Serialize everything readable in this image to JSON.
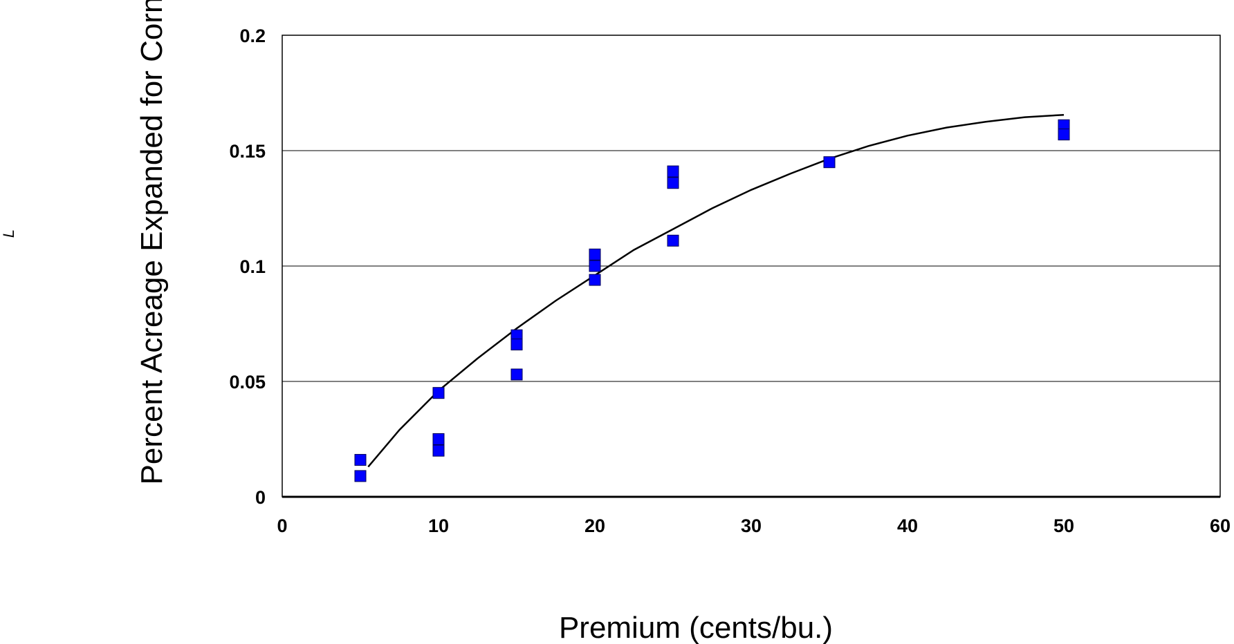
{
  "chart_data": {
    "type": "scatter",
    "title": "",
    "xlabel": "Premium (cents/bu.)",
    "ylabel": "Percent Acreage Expanded for Corn",
    "stray_text": "L",
    "xlim": [
      0,
      60
    ],
    "ylim": [
      0,
      0.2
    ],
    "x_ticks": [
      0,
      10,
      20,
      30,
      40,
      50,
      60
    ],
    "y_ticks": [
      0,
      0.05,
      0.1,
      0.15,
      0.2
    ],
    "x_tick_labels": [
      "0",
      "10",
      "20",
      "30",
      "40",
      "50",
      "60"
    ],
    "y_tick_labels": [
      "0",
      "0.05",
      "0.1",
      "0.15",
      "0.2"
    ],
    "grid": {
      "horizontal": true,
      "vertical": false
    },
    "legend": "none",
    "marker_color": "#0000ff",
    "line_color": "#000000",
    "points": [
      {
        "x": 5,
        "y": 0.016
      },
      {
        "x": 5,
        "y": 0.009
      },
      {
        "x": 10,
        "y": 0.045
      },
      {
        "x": 10,
        "y": 0.025
      },
      {
        "x": 10,
        "y": 0.02
      },
      {
        "x": 15,
        "y": 0.07
      },
      {
        "x": 15,
        "y": 0.066
      },
      {
        "x": 15,
        "y": 0.053
      },
      {
        "x": 20,
        "y": 0.105
      },
      {
        "x": 20,
        "y": 0.1
      },
      {
        "x": 20,
        "y": 0.094
      },
      {
        "x": 25,
        "y": 0.141
      },
      {
        "x": 25,
        "y": 0.136
      },
      {
        "x": 25,
        "y": 0.111
      },
      {
        "x": 35,
        "y": 0.145
      },
      {
        "x": 50,
        "y": 0.161
      },
      {
        "x": 50,
        "y": 0.157
      }
    ],
    "fit_line": {
      "x": [
        5.5,
        7.5,
        10,
        12.5,
        15,
        17.5,
        20,
        22.5,
        25,
        27.5,
        30,
        32.5,
        35,
        37.5,
        40,
        42.5,
        45,
        47.5,
        50
      ],
      "y": [
        0.013,
        0.029,
        0.046,
        0.06,
        0.073,
        0.085,
        0.096,
        0.107,
        0.116,
        0.125,
        0.133,
        0.14,
        0.1465,
        0.152,
        0.1565,
        0.16,
        0.1625,
        0.1645,
        0.1655
      ]
    }
  }
}
